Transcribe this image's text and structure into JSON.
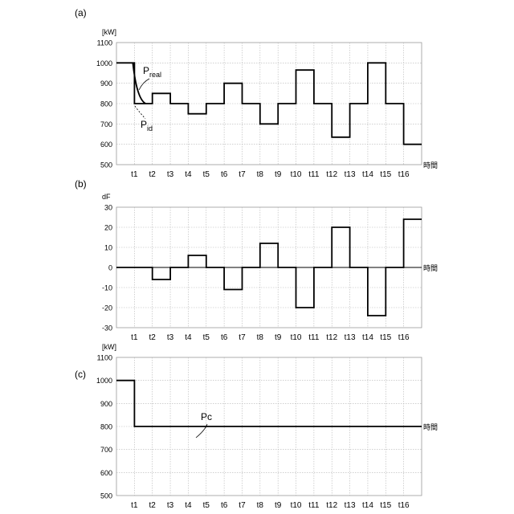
{
  "x_axis_label": "時間",
  "chart_data": [
    {
      "panel": "(a)",
      "type": "line",
      "unit": "[kW]",
      "ylim": [
        500,
        1100
      ],
      "yticks": [
        500,
        600,
        700,
        800,
        900,
        1000,
        1100
      ],
      "x_labels": [
        "t1",
        "t2",
        "t3",
        "t4",
        "t5",
        "t6",
        "t7",
        "t8",
        "t9",
        "t10",
        "t11",
        "t12",
        "t13",
        "t14",
        "t15",
        "t16"
      ],
      "grid": true,
      "series": [
        {
          "name": "Preal",
          "values": [
            1000,
            800,
            850,
            800,
            750,
            800,
            900,
            800,
            700,
            800,
            965,
            800,
            635,
            800,
            1000,
            800,
            600
          ]
        }
      ],
      "annotations": [
        {
          "base": "P",
          "sub": "real"
        },
        {
          "base": "P",
          "sub": "id"
        }
      ]
    },
    {
      "panel": "(b)",
      "type": "line",
      "unit": "dF",
      "ylim": [
        -30,
        30
      ],
      "yticks": [
        -30,
        -20,
        -10,
        0,
        10,
        20,
        30
      ],
      "x_labels": [
        "t1",
        "t2",
        "t3",
        "t4",
        "t5",
        "t6",
        "t7",
        "t8",
        "t9",
        "t10",
        "t11",
        "t12",
        "t13",
        "t14",
        "t15",
        "t16"
      ],
      "grid": true,
      "series": [
        {
          "name": "dF",
          "values": [
            0,
            0,
            -6,
            0,
            6,
            0,
            -11,
            0,
            12,
            0,
            -20,
            0,
            20,
            0,
            -24,
            0,
            24
          ]
        }
      ]
    },
    {
      "panel": "(c)",
      "type": "line",
      "unit": "[kW]",
      "ylim": [
        500,
        1100
      ],
      "yticks": [
        500,
        600,
        700,
        800,
        900,
        1000,
        1100
      ],
      "x_labels": [
        "t1",
        "t2",
        "t3",
        "t4",
        "t5",
        "t6",
        "t7",
        "t8",
        "t9",
        "t10",
        "t11",
        "t12",
        "t13",
        "t14",
        "t15",
        "t16"
      ],
      "grid": true,
      "series": [
        {
          "name": "Pc",
          "values": [
            1000,
            800,
            800,
            800,
            800,
            800,
            800,
            800,
            800,
            800,
            800,
            800,
            800,
            800,
            800,
            800,
            800
          ]
        }
      ],
      "annotations": [
        {
          "base": "Pc",
          "sub": ""
        }
      ]
    }
  ]
}
